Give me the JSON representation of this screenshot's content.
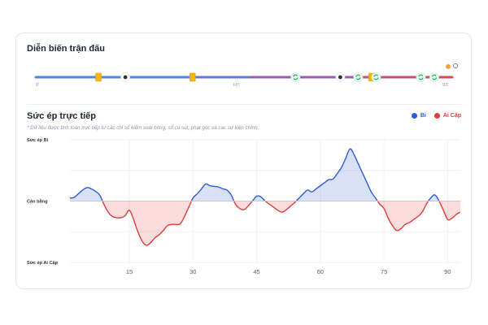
{
  "timeline": {
    "title": "Diễn biến trận đấu",
    "start_label": "0'",
    "half_label": "HT",
    "end_label": "93'",
    "color_home": "#4a86e8",
    "color_away": "#e0474c",
    "segments": [
      {
        "from": 0,
        "to": 35,
        "color": "#4a86e8"
      },
      {
        "from": 35,
        "to": 48,
        "color": "#5b7be0"
      },
      {
        "from": 48,
        "to": 73,
        "color": "#9b59b6"
      },
      {
        "from": 73,
        "to": 88,
        "color": "#d04a70"
      },
      {
        "from": 88,
        "to": 93,
        "color": "#e0474c"
      }
    ],
    "events": [
      {
        "minute": 14,
        "icon": "yellow-card-icon",
        "team": "home"
      },
      {
        "minute": 20,
        "icon": "ball-icon",
        "team": "home"
      },
      {
        "minute": 35,
        "icon": "yellow-card-icon",
        "team": "away"
      },
      {
        "minute": 58,
        "icon": "substitution-icon",
        "team": "home"
      },
      {
        "minute": 68,
        "icon": "ball-icon",
        "team": "away"
      },
      {
        "minute": 72,
        "icon": "substitution-icon",
        "team": "away"
      },
      {
        "minute": 75,
        "icon": "yellow-card-icon",
        "team": "home"
      },
      {
        "minute": 76,
        "icon": "substitution-icon",
        "team": "home"
      },
      {
        "minute": 86,
        "icon": "substitution-icon",
        "team": "away"
      },
      {
        "minute": 89,
        "icon": "substitution-icon",
        "team": "home"
      }
    ]
  },
  "pressure": {
    "title": "Sức ép trực tiếp",
    "note": "* Dữ liệu được tính toán trực tiếp từ các chỉ số kiểm soát bóng, sổ cú sút, phạt góc và các sự kiện chính.",
    "legend": [
      {
        "name": "Bi",
        "color": "#2f5bd3"
      },
      {
        "name": "Ai Cập",
        "color": "#e23b3b"
      }
    ]
  },
  "chart_data": {
    "type": "area",
    "ylabel_top": "Sức ép Bi",
    "ylabel_mid": "Cân bằng",
    "ylabel_bottom": "Sức ép Ai Cập",
    "xlim": [
      1,
      93
    ],
    "ylim": [
      -100,
      100
    ],
    "xticks": [
      15,
      30,
      45,
      60,
      75,
      90
    ],
    "grid": true,
    "home_color": "#2f5bd3",
    "away_color": "#e23b3b",
    "x": [
      1,
      2,
      3,
      4,
      5,
      6,
      7,
      8,
      9,
      10,
      11,
      12,
      13,
      14,
      15,
      16,
      17,
      18,
      19,
      20,
      21,
      22,
      23,
      24,
      25,
      26,
      27,
      28,
      29,
      30,
      31,
      32,
      33,
      34,
      35,
      36,
      37,
      38,
      39,
      40,
      41,
      42,
      43,
      44,
      45,
      46,
      47,
      48,
      49,
      50,
      51,
      52,
      53,
      54,
      55,
      56,
      57,
      58,
      59,
      60,
      61,
      62,
      63,
      64,
      65,
      66,
      67,
      68,
      69,
      70,
      71,
      72,
      73,
      74,
      75,
      76,
      77,
      78,
      79,
      80,
      81,
      82,
      83,
      84,
      85,
      86,
      87,
      88,
      89,
      90,
      91,
      92,
      93
    ],
    "values": [
      5,
      6,
      12,
      18,
      22,
      20,
      16,
      10,
      -5,
      -18,
      -25,
      -27,
      -27,
      -24,
      -15,
      -30,
      -50,
      -65,
      -72,
      -68,
      -60,
      -55,
      -48,
      -40,
      -38,
      -38,
      -37,
      -25,
      -10,
      5,
      12,
      20,
      28,
      25,
      24,
      23,
      20,
      18,
      10,
      -5,
      -12,
      -14,
      -8,
      0,
      8,
      7,
      0,
      -5,
      -10,
      -15,
      -18,
      -14,
      -8,
      -2,
      5,
      12,
      18,
      15,
      20,
      25,
      30,
      35,
      36,
      45,
      55,
      70,
      85,
      75,
      60,
      45,
      30,
      15,
      5,
      -5,
      -12,
      -28,
      -40,
      -48,
      -45,
      -38,
      -35,
      -30,
      -25,
      -18,
      -5,
      5,
      10,
      0,
      -15,
      -30,
      -28,
      -22,
      -18
    ]
  }
}
